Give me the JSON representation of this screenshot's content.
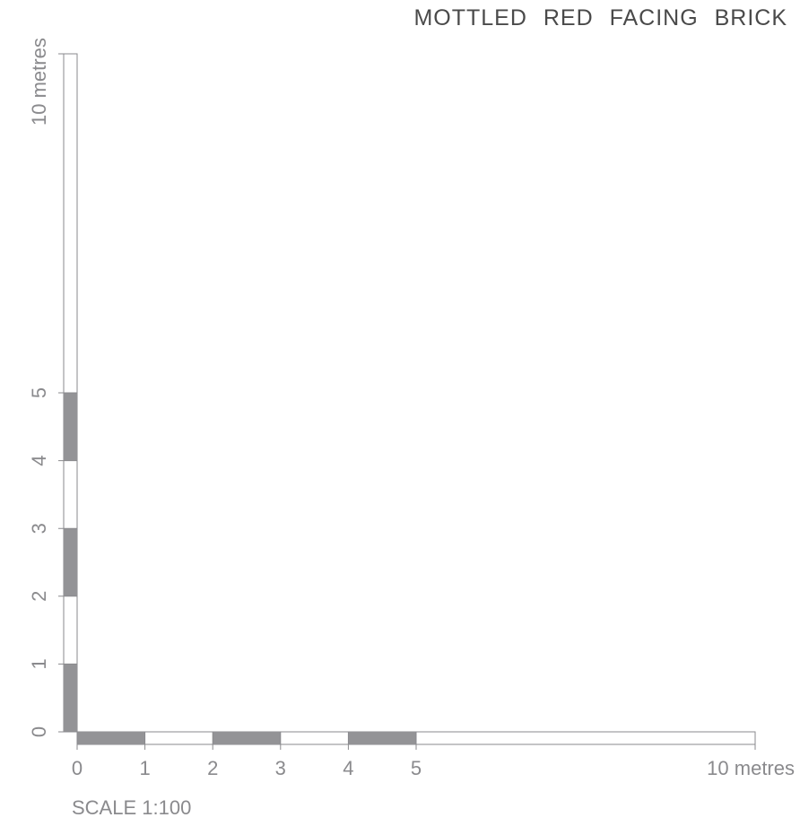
{
  "title": "MOTTLED  RED  FACING  BRICK",
  "scale_caption": "SCALE 1:100",
  "bar_colors": {
    "filled": "#939396",
    "empty": "#ffffff",
    "stroke": "#8a8a8d"
  },
  "horizontal_bar": {
    "labels": [
      "0",
      "1",
      "2",
      "3",
      "4",
      "5"
    ],
    "end_label": "10 metres",
    "filled_segments": [
      [
        0,
        1
      ],
      [
        2,
        3
      ],
      [
        4,
        5
      ]
    ],
    "max": 10
  },
  "vertical_bar": {
    "labels": [
      "0",
      "1",
      "2",
      "3",
      "4",
      "5"
    ],
    "end_label": "10 metres",
    "filled_segments": [
      [
        0,
        1
      ],
      [
        2,
        3
      ],
      [
        4,
        5
      ]
    ],
    "max": 10
  }
}
